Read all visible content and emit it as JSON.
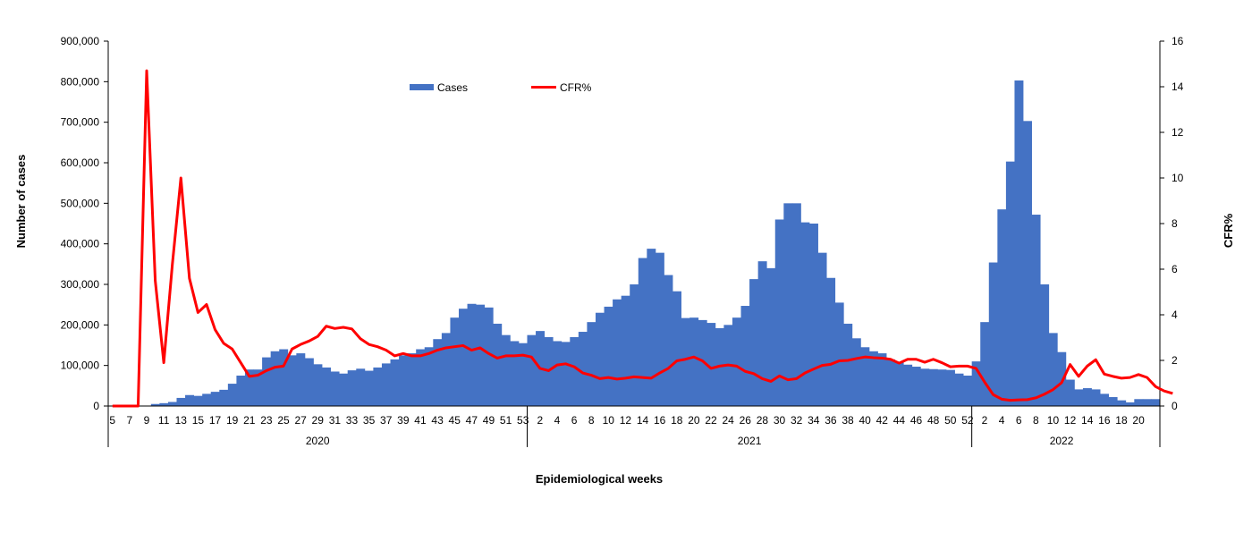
{
  "chart_data": {
    "type": "bar",
    "xlabel": "Epidemiological weeks",
    "ylabel": "Number of cases",
    "y2label": "CFR%",
    "ylim": [
      0,
      900000
    ],
    "y2lim": [
      0,
      16
    ],
    "y_ticks": [
      "0",
      "100,000",
      "200,000",
      "300,000",
      "400,000",
      "500,000",
      "600,000",
      "700,000",
      "800,000",
      "900,000"
    ],
    "y2_ticks": [
      "0",
      "2",
      "4",
      "6",
      "8",
      "10",
      "12",
      "14",
      "16"
    ],
    "years": [
      {
        "label": "2020",
        "start_week": 5,
        "end_week": 53
      },
      {
        "label": "2021",
        "start_week": 1,
        "end_week": 52
      },
      {
        "label": "2022",
        "start_week": 1,
        "end_week": 21
      }
    ],
    "week_tick_labels": [
      "5",
      "7",
      "9",
      "11",
      "13",
      "15",
      "17",
      "19",
      "21",
      "23",
      "25",
      "27",
      "29",
      "31",
      "33",
      "35",
      "37",
      "39",
      "41",
      "43",
      "45",
      "47",
      "49",
      "51",
      "53",
      "2",
      "4",
      "6",
      "8",
      "10",
      "12",
      "14",
      "16",
      "18",
      "20",
      "22",
      "24",
      "26",
      "28",
      "30",
      "32",
      "34",
      "36",
      "38",
      "40",
      "42",
      "44",
      "46",
      "48",
      "50",
      "52",
      "2",
      "4",
      "6",
      "8",
      "10",
      "12",
      "14",
      "16",
      "18",
      "20"
    ],
    "legend": {
      "position": "top-center"
    },
    "series": [
      {
        "name": "Cases",
        "type": "bar",
        "color": "#4472C4",
        "values": [
          0,
          0,
          0,
          0,
          0,
          5000,
          7000,
          10000,
          20000,
          27000,
          25000,
          30000,
          35000,
          40000,
          55000,
          75000,
          90000,
          90000,
          120000,
          135000,
          140000,
          125000,
          130000,
          118000,
          103000,
          95000,
          85000,
          80000,
          88000,
          92000,
          87000,
          95000,
          105000,
          115000,
          125000,
          130000,
          140000,
          145000,
          165000,
          180000,
          218000,
          240000,
          252000,
          250000,
          243000,
          203000,
          175000,
          160000,
          155000,
          175000,
          185000,
          170000,
          160000,
          158000,
          170000,
          183000,
          207000,
          230000,
          245000,
          263000,
          272000,
          300000,
          365000,
          388000,
          378000,
          323000,
          283000,
          217000,
          218000,
          212000,
          205000,
          192000,
          200000,
          218000,
          247000,
          313000,
          357000,
          340000,
          460000,
          500000,
          500000,
          453000,
          450000,
          378000,
          316000,
          255000,
          203000,
          167000,
          145000,
          135000,
          130000,
          115000,
          108000,
          102000,
          97000,
          92000,
          91000,
          90000,
          89000,
          80000,
          75000,
          110000,
          207000,
          354000,
          485000,
          603000,
          803000,
          703000,
          472000,
          300000,
          180000,
          133000,
          65000,
          41000,
          44000,
          41000,
          30000,
          22000,
          14000,
          9000,
          17000,
          17000,
          17000
        ]
      },
      {
        "name": "CFR%",
        "type": "line",
        "color": "#FF0000",
        "values": [
          0,
          0,
          0,
          0,
          14.7,
          5.5,
          1.9,
          6.2,
          10.0,
          5.6,
          4.1,
          4.45,
          3.35,
          2.75,
          2.5,
          1.9,
          1.3,
          1.35,
          1.55,
          1.7,
          1.75,
          2.5,
          2.7,
          2.85,
          3.05,
          3.5,
          3.4,
          3.45,
          3.38,
          2.95,
          2.7,
          2.6,
          2.45,
          2.2,
          2.3,
          2.2,
          2.2,
          2.3,
          2.45,
          2.55,
          2.6,
          2.65,
          2.45,
          2.55,
          2.3,
          2.1,
          2.2,
          2.2,
          2.23,
          2.15,
          1.65,
          1.55,
          1.8,
          1.85,
          1.72,
          1.45,
          1.35,
          1.2,
          1.25,
          1.18,
          1.22,
          1.28,
          1.25,
          1.22,
          1.45,
          1.65,
          1.98,
          2.05,
          2.15,
          1.98,
          1.65,
          1.75,
          1.8,
          1.75,
          1.52,
          1.42,
          1.2,
          1.08,
          1.32,
          1.15,
          1.2,
          1.45,
          1.62,
          1.78,
          1.83,
          1.98,
          2.0,
          2.08,
          2.15,
          2.12,
          2.1,
          2.05,
          1.88,
          2.05,
          2.05,
          1.92,
          2.05,
          1.9,
          1.72,
          1.75,
          1.75,
          1.65,
          1.05,
          0.5,
          0.3,
          0.25,
          0.27,
          0.28,
          0.36,
          0.52,
          0.72,
          1.02,
          1.82,
          1.3,
          1.75,
          2.03,
          1.4,
          1.3,
          1.22,
          1.25,
          1.38,
          1.25,
          0.85,
          0.66,
          0.55
        ]
      }
    ]
  }
}
